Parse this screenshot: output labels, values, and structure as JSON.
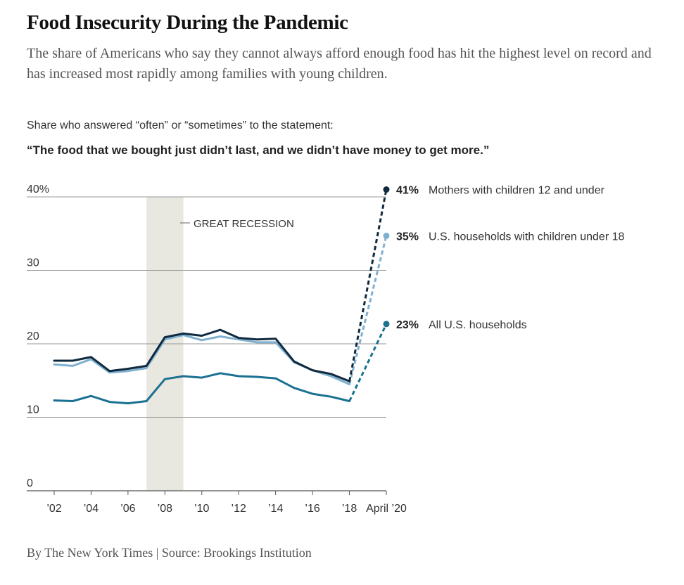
{
  "header": {
    "title": "Food Insecurity During the Pandemic",
    "subtitle": "The share of Americans who say they cannot always afford enough food has hit the highest level on record and has increased most rapidly among families with young children."
  },
  "chart_intro": {
    "lead": "Share who answered “often” or “sometimes” to the statement:",
    "quote": "“The food that we bought just didn’t last, and we didn’t have money to get more.”"
  },
  "footer": {
    "source": "By The New York Times | Source: Brookings Institution"
  },
  "chart_data": {
    "type": "line",
    "title": "",
    "xlabel": "",
    "ylabel": "",
    "ylim": [
      0,
      40
    ],
    "y_ticks": [
      {
        "value": 40,
        "label": "40%"
      },
      {
        "value": 30,
        "label": "30"
      },
      {
        "value": 20,
        "label": "20"
      },
      {
        "value": 10,
        "label": "10"
      },
      {
        "value": 0,
        "label": "0"
      }
    ],
    "x_ticks": [
      {
        "value": 2002,
        "label": "’02"
      },
      {
        "value": 2004,
        "label": "’04"
      },
      {
        "value": 2006,
        "label": "’06"
      },
      {
        "value": 2008,
        "label": "’08"
      },
      {
        "value": 2010,
        "label": "’10"
      },
      {
        "value": 2012,
        "label": "’12"
      },
      {
        "value": 2014,
        "label": "’14"
      },
      {
        "value": 2016,
        "label": "’16"
      },
      {
        "value": 2018,
        "label": "’18"
      },
      {
        "value": 2020,
        "label": "April ’20"
      }
    ],
    "xlim": [
      2002,
      2020
    ],
    "grid": true,
    "shaded_period": {
      "start": 2007,
      "end": 2009,
      "label": "GREAT RECESSION"
    },
    "series": [
      {
        "name": "Mothers with children 12 and under",
        "value_label": "41%",
        "color": "#0f2a3f",
        "x": [
          2002,
          2003,
          2004,
          2005,
          2006,
          2007,
          2008,
          2009,
          2010,
          2011,
          2012,
          2013,
          2014,
          2015,
          2016,
          2017,
          2018
        ],
        "y": [
          17.7,
          17.7,
          18.2,
          16.3,
          16.6,
          17.0,
          20.9,
          21.4,
          21.1,
          21.9,
          20.8,
          20.6,
          20.7,
          17.6,
          16.4,
          15.9,
          14.9
        ],
        "projected": {
          "x": [
            2018,
            2020
          ],
          "y": [
            14.9,
            41
          ]
        }
      },
      {
        "name": "U.S. households with children under 18",
        "value_label": "35%",
        "color": "#7fb0cf",
        "x": [
          2002,
          2003,
          2004,
          2005,
          2006,
          2007,
          2008,
          2009,
          2010,
          2011,
          2012,
          2013,
          2014,
          2015,
          2016,
          2017,
          2018
        ],
        "y": [
          17.2,
          17.0,
          17.9,
          16.1,
          16.3,
          16.7,
          20.6,
          21.2,
          20.5,
          21.0,
          20.6,
          20.2,
          20.2,
          17.5,
          16.4,
          15.6,
          14.5
        ],
        "projected": {
          "x": [
            2018,
            2020
          ],
          "y": [
            14.5,
            34.7
          ]
        }
      },
      {
        "name": "All U.S. households",
        "value_label": "23%",
        "color": "#1a7191",
        "x": [
          2002,
          2003,
          2004,
          2005,
          2006,
          2007,
          2008,
          2009,
          2010,
          2011,
          2012,
          2013,
          2014,
          2015,
          2016,
          2017,
          2018
        ],
        "y": [
          12.3,
          12.2,
          12.9,
          12.1,
          11.9,
          12.2,
          15.2,
          15.6,
          15.4,
          16.0,
          15.6,
          15.5,
          15.3,
          14.0,
          13.2,
          12.8,
          12.2
        ],
        "projected": {
          "x": [
            2018,
            2020
          ],
          "y": [
            12.2,
            22.7
          ]
        }
      }
    ]
  }
}
